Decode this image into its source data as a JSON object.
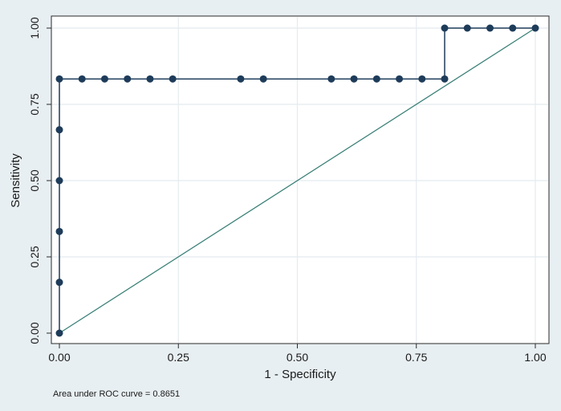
{
  "chart_data": {
    "type": "line",
    "xlabel": "1 - Specificity",
    "ylabel": "Sensitivity",
    "xlim": [
      0,
      1
    ],
    "ylim": [
      0,
      1
    ],
    "x_ticks": [
      0,
      0.25,
      0.5,
      0.75,
      1.0
    ],
    "x_tick_labels": [
      "0.00",
      "0.25",
      "0.50",
      "0.75",
      "1.00"
    ],
    "y_ticks": [
      0,
      0.25,
      0.5,
      0.75,
      1.0
    ],
    "y_tick_labels": [
      "0.00",
      "0.25",
      "0.50",
      "0.75",
      "1.00"
    ],
    "grid": true,
    "note": "Area under ROC curve = 0.8651",
    "series": [
      {
        "values": [
          {
            "x": 0.0,
            "y": 0.0
          },
          {
            "x": 0.0,
            "y": 0.1667
          },
          {
            "x": 0.0,
            "y": 0.3333
          },
          {
            "x": 0.0,
            "y": 0.5
          },
          {
            "x": 0.0,
            "y": 0.6667
          },
          {
            "x": 0.0,
            "y": 0.8333
          },
          {
            "x": 0.0476,
            "y": 0.8333
          },
          {
            "x": 0.0952,
            "y": 0.8333
          },
          {
            "x": 0.1429,
            "y": 0.8333
          },
          {
            "x": 0.1905,
            "y": 0.8333
          },
          {
            "x": 0.2381,
            "y": 0.8333
          },
          {
            "x": 0.381,
            "y": 0.8333
          },
          {
            "x": 0.4286,
            "y": 0.8333
          },
          {
            "x": 0.5714,
            "y": 0.8333
          },
          {
            "x": 0.619,
            "y": 0.8333
          },
          {
            "x": 0.6667,
            "y": 0.8333
          },
          {
            "x": 0.7143,
            "y": 0.8333
          },
          {
            "x": 0.7619,
            "y": 0.8333
          },
          {
            "x": 0.8095,
            "y": 0.8333
          },
          {
            "x": 0.8095,
            "y": 1.0
          },
          {
            "x": 0.8571,
            "y": 1.0
          },
          {
            "x": 0.9048,
            "y": 1.0
          },
          {
            "x": 0.9524,
            "y": 1.0
          },
          {
            "x": 1.0,
            "y": 1.0
          }
        ]
      }
    ],
    "reference_line": [
      [
        0,
        0
      ],
      [
        1,
        1
      ]
    ],
    "colors": {
      "background": "#e8eff2",
      "plot_area": "#ffffff",
      "roc_line": "#1e3c5a",
      "markers": "#1e3c5a",
      "reference_line": "#3a8078",
      "grid": "#e4ebef",
      "axis": "#2a2a2a"
    }
  }
}
